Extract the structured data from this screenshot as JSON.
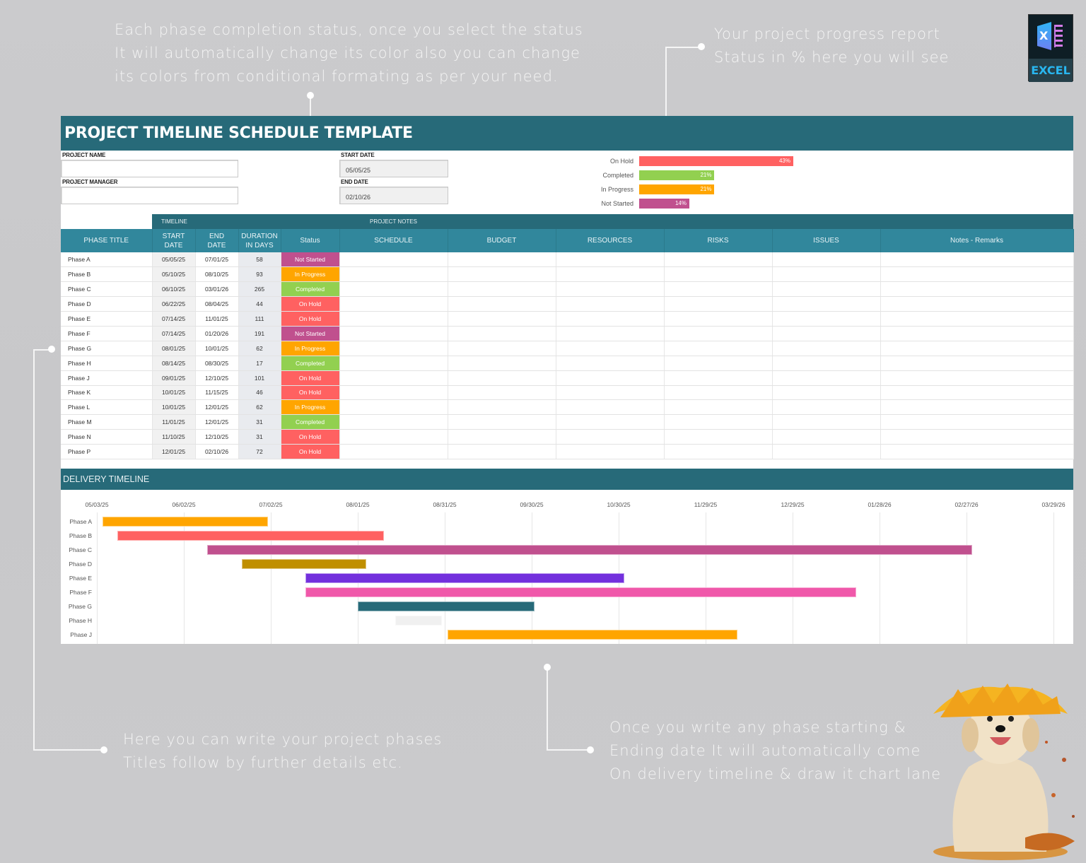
{
  "annotations": {
    "status_note": "Each phase completion status, once you select the status\nIt will automatically change its color also you can change\nits colors from conditional formating as per your need.",
    "progress_note": "Your project progress report\nStatus in % here you will see",
    "phases_note": "Here you can write your project phases\nTitles follow by further details etc.",
    "timeline_note": "Once you write any phase starting &\nEnding date It will automatically come\nOn delivery timeline & draw it chart lane"
  },
  "badge": {
    "letter": "X",
    "label": "EXCEL"
  },
  "sheet": {
    "title": "PROJECT TIMELINE SCHEDULE TEMPLATE",
    "project_name_label": "PROJECT NAME",
    "project_name_value": "",
    "project_manager_label": "PROJECT MANAGER",
    "project_manager_value": "",
    "start_date_label": "START DATE",
    "start_date_value": "05/05/25",
    "end_date_label": "END DATE",
    "end_date_value": "02/10/26"
  },
  "status_summary": [
    {
      "name": "On Hold",
      "pct": 43,
      "label": "43%",
      "color": "#ff6161"
    },
    {
      "name": "Completed",
      "pct": 21,
      "label": "21%",
      "color": "#92d050"
    },
    {
      "name": "In Progress",
      "pct": 21,
      "label": "21%",
      "color": "#ffa500"
    },
    {
      "name": "Not Started",
      "pct": 14,
      "label": "14%",
      "color": "#c0508e"
    }
  ],
  "group_headers": {
    "timeline": "TIMELINE",
    "notes": "PROJECT NOTES"
  },
  "columns": [
    "PHASE TITLE",
    "START\nDATE",
    "END\nDATE",
    "DURATION\nIN DAYS",
    "Status",
    "SCHEDULE",
    "BUDGET",
    "RESOURCES",
    "RISKS",
    "ISSUES",
    "Notes - Remarks"
  ],
  "status_colors": {
    "Not Started": "#c0508e",
    "In Progress": "#ffa500",
    "Completed": "#92d050",
    "On Hold": "#ff6161"
  },
  "phases": [
    {
      "title": "Phase A",
      "start": "05/05/25",
      "end": "07/01/25",
      "duration": "58",
      "status": "Not Started"
    },
    {
      "title": "Phase B",
      "start": "05/10/25",
      "end": "08/10/25",
      "duration": "93",
      "status": "In Progress"
    },
    {
      "title": "Phase C",
      "start": "06/10/25",
      "end": "03/01/26",
      "duration": "265",
      "status": "Completed"
    },
    {
      "title": "Phase D",
      "start": "06/22/25",
      "end": "08/04/25",
      "duration": "44",
      "status": "On Hold"
    },
    {
      "title": "Phase E",
      "start": "07/14/25",
      "end": "11/01/25",
      "duration": "111",
      "status": "On Hold"
    },
    {
      "title": "Phase F",
      "start": "07/14/25",
      "end": "01/20/26",
      "duration": "191",
      "status": "Not Started"
    },
    {
      "title": "Phase G",
      "start": "08/01/25",
      "end": "10/01/25",
      "duration": "62",
      "status": "In Progress"
    },
    {
      "title": "Phase H",
      "start": "08/14/25",
      "end": "08/30/25",
      "duration": "17",
      "status": "Completed"
    },
    {
      "title": "Phase J",
      "start": "09/01/25",
      "end": "12/10/25",
      "duration": "101",
      "status": "On Hold"
    },
    {
      "title": "Phase K",
      "start": "10/01/25",
      "end": "11/15/25",
      "duration": "46",
      "status": "On Hold"
    },
    {
      "title": "Phase L",
      "start": "10/01/25",
      "end": "12/01/25",
      "duration": "62",
      "status": "In Progress"
    },
    {
      "title": "Phase M",
      "start": "11/01/25",
      "end": "12/01/25",
      "duration": "31",
      "status": "Completed"
    },
    {
      "title": "Phase N",
      "start": "11/10/25",
      "end": "12/10/25",
      "duration": "31",
      "status": "On Hold"
    },
    {
      "title": "Phase P",
      "start": "12/01/25",
      "end": "02/10/26",
      "duration": "72",
      "status": "On Hold"
    }
  ],
  "delivery_timeline": {
    "title": "DELIVERY TIMELINE",
    "ticks": [
      "05/03/25",
      "06/02/25",
      "07/02/25",
      "08/01/25",
      "08/31/25",
      "09/30/25",
      "10/30/25",
      "11/29/25",
      "12/29/25",
      "01/28/26",
      "02/27/26",
      "03/29/26"
    ],
    "visible_rows": [
      {
        "label": "Phase A",
        "color": "#ffa500"
      },
      {
        "label": "Phase B",
        "color": "#ff6161"
      },
      {
        "label": "Phase C",
        "color": "#c0508e"
      },
      {
        "label": "Phase D",
        "color": "#c08f00"
      },
      {
        "label": "Phase E",
        "color": "#7330dd"
      },
      {
        "label": "Phase F",
        "color": "#f058aa"
      },
      {
        "label": "Phase G",
        "color": "#276a79"
      },
      {
        "label": "Phase H",
        "color": "#f0f0f0"
      },
      {
        "label": "Phase J",
        "color": "#ffa500"
      }
    ]
  },
  "chart_data": {
    "type": "bar",
    "title": "Status Summary",
    "categories": [
      "On Hold",
      "Completed",
      "In Progress",
      "Not Started"
    ],
    "values": [
      43,
      21,
      21,
      14
    ],
    "xlabel": "",
    "ylabel": "%",
    "gantt": {
      "title": "DELIVERY TIMELINE",
      "x_ticks": [
        "05/03/25",
        "06/02/25",
        "07/02/25",
        "08/01/25",
        "08/31/25",
        "09/30/25",
        "10/30/25",
        "11/29/25",
        "12/29/25",
        "01/28/26",
        "02/27/26",
        "03/29/26"
      ],
      "tasks": [
        {
          "name": "Phase A",
          "start": "05/05/25",
          "end": "07/01/25"
        },
        {
          "name": "Phase B",
          "start": "05/10/25",
          "end": "08/10/25"
        },
        {
          "name": "Phase C",
          "start": "06/10/25",
          "end": "03/01/26"
        },
        {
          "name": "Phase D",
          "start": "06/22/25",
          "end": "08/04/25"
        },
        {
          "name": "Phase E",
          "start": "07/14/25",
          "end": "11/01/25"
        },
        {
          "name": "Phase F",
          "start": "07/14/25",
          "end": "01/20/26"
        },
        {
          "name": "Phase G",
          "start": "08/01/25",
          "end": "10/01/25"
        },
        {
          "name": "Phase H",
          "start": "08/14/25",
          "end": "08/30/25"
        },
        {
          "name": "Phase J",
          "start": "09/01/25",
          "end": "12/10/25"
        }
      ]
    }
  }
}
